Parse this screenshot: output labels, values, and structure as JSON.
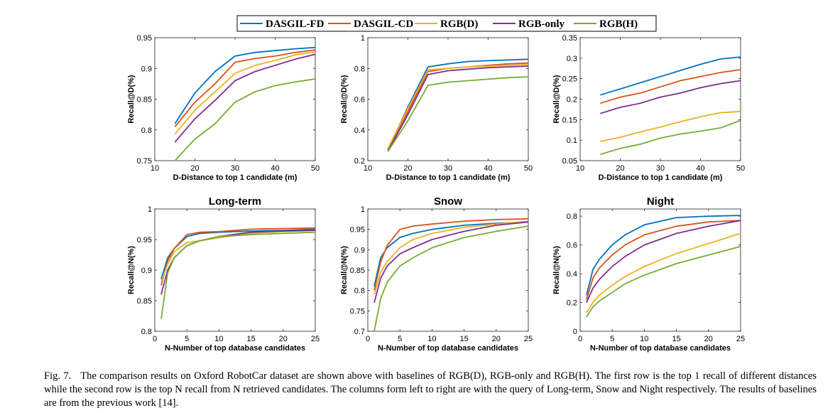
{
  "legend": {
    "entries": [
      {
        "name": "DASGIL-FD",
        "color": "#0072bd"
      },
      {
        "name": "DASGIL-CD",
        "color": "#d95319"
      },
      {
        "name": "RGB(D)",
        "color": "#edb120"
      },
      {
        "name": "RGB-only",
        "color": "#7e2f8e"
      },
      {
        "name": "RGB(H)",
        "color": "#77ac30"
      }
    ]
  },
  "caption": {
    "label": "Fig. 7.",
    "text": "The comparison results on Oxford RobotCar dataset are shown above with baselines of RGB(D), RGB-only and RGB(H). The first row is the top 1 recall of different distances while the second row is the top N recall from N retrieved candidates. The columns form left to right are with the query of Long-term, Snow and Night respectively. The results of baselines are from the previous work [14]."
  },
  "chart_data": [
    {
      "type": "line",
      "title": "",
      "xlabel": "D-Distance to top 1 candidate (m)",
      "ylabel": "Recall@D(%)",
      "xlim": [
        10,
        50
      ],
      "ylim": [
        0.75,
        0.95
      ],
      "xticks": [
        10,
        20,
        30,
        40,
        50
      ],
      "yticks": [
        0.75,
        0.8,
        0.85,
        0.9,
        0.95
      ],
      "grid": false,
      "x": [
        15,
        20,
        25,
        30,
        35,
        40,
        45,
        50
      ],
      "series": [
        {
          "name": "DASGIL-FD",
          "values": [
            0.81,
            0.86,
            0.895,
            0.92,
            0.926,
            0.929,
            0.932,
            0.934
          ]
        },
        {
          "name": "DASGIL-CD",
          "values": [
            0.805,
            0.845,
            0.875,
            0.91,
            0.916,
            0.92,
            0.926,
            0.93
          ]
        },
        {
          "name": "RGB(D)",
          "values": [
            0.793,
            0.832,
            0.862,
            0.892,
            0.905,
            0.913,
            0.922,
            0.927
          ]
        },
        {
          "name": "RGB-only",
          "values": [
            0.78,
            0.818,
            0.848,
            0.88,
            0.895,
            0.905,
            0.915,
            0.923
          ]
        },
        {
          "name": "RGB(H)",
          "values": [
            0.75,
            0.785,
            0.81,
            0.845,
            0.862,
            0.872,
            0.878,
            0.883
          ]
        }
      ]
    },
    {
      "type": "line",
      "title": "",
      "xlabel": "D-Distance to top 1 candidate (m)",
      "ylabel": "Recall@D(%)",
      "xlim": [
        10,
        50
      ],
      "ylim": [
        0.2,
        1.0
      ],
      "xticks": [
        10,
        20,
        30,
        40,
        50
      ],
      "yticks": [
        0.2,
        0.4,
        0.6,
        0.8,
        1
      ],
      "grid": false,
      "x": [
        15,
        20,
        25,
        30,
        35,
        40,
        45,
        50
      ],
      "series": [
        {
          "name": "DASGIL-FD",
          "values": [
            0.27,
            0.55,
            0.81,
            0.83,
            0.845,
            0.85,
            0.855,
            0.86
          ]
        },
        {
          "name": "DASGIL-CD",
          "values": [
            0.26,
            0.52,
            0.78,
            0.8,
            0.81,
            0.82,
            0.83,
            0.835
          ]
        },
        {
          "name": "RGB(D)",
          "values": [
            0.28,
            0.54,
            0.79,
            0.8,
            0.81,
            0.815,
            0.82,
            0.825
          ]
        },
        {
          "name": "RGB-only",
          "values": [
            0.26,
            0.5,
            0.76,
            0.785,
            0.795,
            0.805,
            0.81,
            0.815
          ]
        },
        {
          "name": "RGB(H)",
          "values": [
            0.26,
            0.46,
            0.69,
            0.71,
            0.72,
            0.73,
            0.74,
            0.745
          ]
        }
      ]
    },
    {
      "type": "line",
      "title": "",
      "xlabel": "D-Distance to top 1 candidate (m)",
      "ylabel": "Recall@D(%)",
      "xlim": [
        10,
        50
      ],
      "ylim": [
        0.05,
        0.35
      ],
      "xticks": [
        10,
        20,
        30,
        40,
        50
      ],
      "yticks": [
        0.05,
        0.1,
        0.15,
        0.2,
        0.25,
        0.3,
        0.35
      ],
      "grid": false,
      "x": [
        15,
        20,
        25,
        30,
        35,
        40,
        45,
        50
      ],
      "series": [
        {
          "name": "DASGIL-FD",
          "values": [
            0.21,
            0.225,
            0.24,
            0.255,
            0.27,
            0.285,
            0.298,
            0.303
          ]
        },
        {
          "name": "DASGIL-CD",
          "values": [
            0.19,
            0.205,
            0.215,
            0.23,
            0.245,
            0.255,
            0.265,
            0.272
          ]
        },
        {
          "name": "RGB-only",
          "values": [
            0.165,
            0.18,
            0.19,
            0.205,
            0.215,
            0.228,
            0.238,
            0.245
          ]
        },
        {
          "name": "RGB(D)",
          "values": [
            0.097,
            0.107,
            0.12,
            0.132,
            0.145,
            0.157,
            0.167,
            0.17
          ]
        },
        {
          "name": "RGB(H)",
          "values": [
            0.065,
            0.08,
            0.09,
            0.105,
            0.115,
            0.122,
            0.13,
            0.148
          ]
        }
      ]
    },
    {
      "type": "line",
      "title": "Long-term",
      "xlabel": "N-Number of top database candidates",
      "ylabel": "Recall@N(%)",
      "xlim": [
        0,
        25
      ],
      "ylim": [
        0.8,
        1.0
      ],
      "xticks": [
        0,
        5,
        10,
        15,
        20,
        25
      ],
      "yticks": [
        0.8,
        0.85,
        0.9,
        0.95,
        1
      ],
      "grid": false,
      "x": [
        1,
        2,
        3,
        5,
        7,
        10,
        15,
        20,
        25
      ],
      "series": [
        {
          "name": "DASGIL-FD",
          "values": [
            0.885,
            0.92,
            0.935,
            0.955,
            0.96,
            0.962,
            0.964,
            0.965,
            0.967
          ]
        },
        {
          "name": "DASGIL-CD",
          "values": [
            0.875,
            0.915,
            0.935,
            0.958,
            0.962,
            0.963,
            0.967,
            0.968,
            0.969
          ]
        },
        {
          "name": "RGB(D)",
          "values": [
            0.88,
            0.91,
            0.93,
            0.945,
            0.948,
            0.953,
            0.96,
            0.963,
            0.965
          ]
        },
        {
          "name": "RGB-only",
          "values": [
            0.86,
            0.9,
            0.92,
            0.94,
            0.948,
            0.955,
            0.962,
            0.964,
            0.965
          ]
        },
        {
          "name": "RGB(H)",
          "values": [
            0.82,
            0.895,
            0.92,
            0.94,
            0.948,
            0.955,
            0.958,
            0.96,
            0.962
          ]
        }
      ]
    },
    {
      "type": "line",
      "title": "Snow",
      "xlabel": "N-Number of top database candidates",
      "ylabel": "Recall@N(%)",
      "xlim": [
        0,
        25
      ],
      "ylim": [
        0.7,
        1.0
      ],
      "xticks": [
        0,
        5,
        10,
        15,
        20,
        25
      ],
      "yticks": [
        0.7,
        0.75,
        0.8,
        0.85,
        0.9,
        0.95,
        1
      ],
      "grid": false,
      "x": [
        1,
        2,
        3,
        5,
        7,
        10,
        15,
        20,
        25
      ],
      "series": [
        {
          "name": "DASGIL-FD",
          "values": [
            0.81,
            0.88,
            0.905,
            0.93,
            0.94,
            0.95,
            0.96,
            0.965,
            0.968
          ]
        },
        {
          "name": "DASGIL-CD",
          "values": [
            0.8,
            0.87,
            0.91,
            0.95,
            0.958,
            0.963,
            0.97,
            0.974,
            0.976
          ]
        },
        {
          "name": "RGB(D)",
          "values": [
            0.79,
            0.845,
            0.87,
            0.905,
            0.925,
            0.94,
            0.955,
            0.963,
            0.97
          ]
        },
        {
          "name": "RGB-only",
          "values": [
            0.77,
            0.83,
            0.86,
            0.89,
            0.905,
            0.925,
            0.945,
            0.96,
            0.968
          ]
        },
        {
          "name": "RGB(H)",
          "values": [
            0.7,
            0.78,
            0.82,
            0.86,
            0.88,
            0.905,
            0.93,
            0.945,
            0.958
          ]
        }
      ]
    },
    {
      "type": "line",
      "title": "Night",
      "xlabel": "N-Number of top database candidates",
      "ylabel": "Recall@N(%)",
      "xlim": [
        0,
        25
      ],
      "ylim": [
        0,
        0.85
      ],
      "xticks": [
        0,
        5,
        10,
        15,
        20,
        25
      ],
      "yticks": [
        0,
        0.2,
        0.4,
        0.6,
        0.8
      ],
      "grid": false,
      "x": [
        1,
        2,
        3,
        5,
        7,
        10,
        15,
        20,
        25
      ],
      "series": [
        {
          "name": "DASGIL-FD",
          "values": [
            0.25,
            0.43,
            0.5,
            0.6,
            0.67,
            0.74,
            0.79,
            0.8,
            0.805
          ]
        },
        {
          "name": "DASGIL-CD",
          "values": [
            0.22,
            0.37,
            0.44,
            0.53,
            0.6,
            0.67,
            0.73,
            0.76,
            0.77
          ]
        },
        {
          "name": "RGB-only",
          "values": [
            0.2,
            0.3,
            0.36,
            0.45,
            0.52,
            0.6,
            0.68,
            0.73,
            0.77
          ]
        },
        {
          "name": "RGB(D)",
          "values": [
            0.13,
            0.2,
            0.25,
            0.32,
            0.38,
            0.45,
            0.54,
            0.61,
            0.68
          ]
        },
        {
          "name": "RGB(H)",
          "values": [
            0.1,
            0.17,
            0.21,
            0.27,
            0.33,
            0.39,
            0.47,
            0.53,
            0.59
          ]
        }
      ]
    }
  ]
}
